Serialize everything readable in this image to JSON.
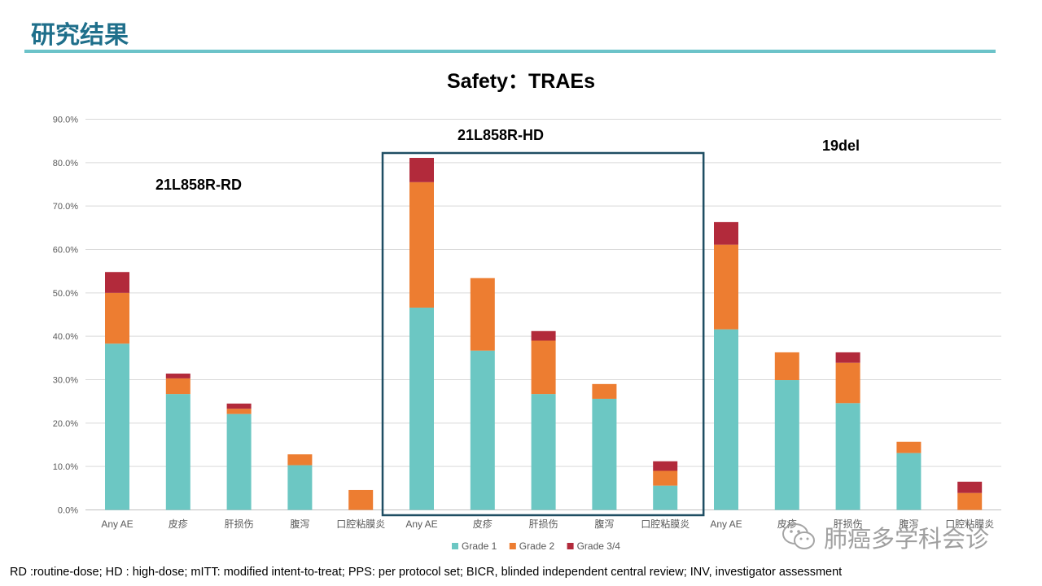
{
  "page": {
    "title": "研究结果",
    "footnote": "RD :routine-dose; HD : high-dose; mITT:  modified intent-to-treat;  PPS: per protocol set; BICR, blinded independent central review; INV, investigator assessment",
    "watermark": "肺癌多学科会诊",
    "watermark_icon": "wechat-icon"
  },
  "colors": {
    "title": "#1f6f8b",
    "rule": "#6cc3c9",
    "grade1": "#6cc7c3",
    "grade2": "#ed7d31",
    "grade34": "#b22a3b",
    "highlight_box": "#1f4e63"
  },
  "chart_data": {
    "type": "bar",
    "stacked": true,
    "title": "Safety：TRAEs",
    "ylim": [
      0,
      90
    ],
    "yticks": [
      0,
      10,
      20,
      30,
      40,
      50,
      60,
      70,
      80,
      90
    ],
    "ytick_labels": [
      "0.0%",
      "10.0%",
      "20.0%",
      "30.0%",
      "40.0%",
      "50.0%",
      "60.0%",
      "70.0%",
      "80.0%",
      "90.0%"
    ],
    "grid": true,
    "legend_position": "bottom",
    "groups": [
      {
        "name": "21L858R-RD",
        "highlighted": false
      },
      {
        "name": "21L858R-HD",
        "highlighted": true
      },
      {
        "name": "19del",
        "highlighted": false
      }
    ],
    "categories": [
      "Any AE",
      "皮疹",
      "肝损伤",
      "腹泻",
      "口腔粘膜炎",
      "Any AE",
      "皮疹",
      "肝损伤",
      "腹泻",
      "口腔粘膜炎",
      "Any AE",
      "皮疹",
      "肝损伤",
      "腹泻",
      "口腔粘膜炎"
    ],
    "series": [
      {
        "name": "Grade 1",
        "values": [
          38.3,
          26.7,
          22.1,
          10.3,
          0,
          46.6,
          36.7,
          26.7,
          25.6,
          5.6,
          41.6,
          29.9,
          24.6,
          13.1,
          0
        ]
      },
      {
        "name": "Grade 2",
        "values": [
          11.7,
          3.6,
          1.2,
          2.5,
          4.6,
          28.9,
          16.7,
          12.3,
          3.4,
          3.4,
          19.5,
          6.4,
          9.3,
          2.6,
          3.9
        ]
      },
      {
        "name": "Grade 3/4",
        "values": [
          4.8,
          1.1,
          1.2,
          0,
          0,
          5.6,
          0,
          2.2,
          0,
          2.2,
          5.2,
          0,
          2.4,
          0,
          2.6
        ]
      }
    ]
  }
}
